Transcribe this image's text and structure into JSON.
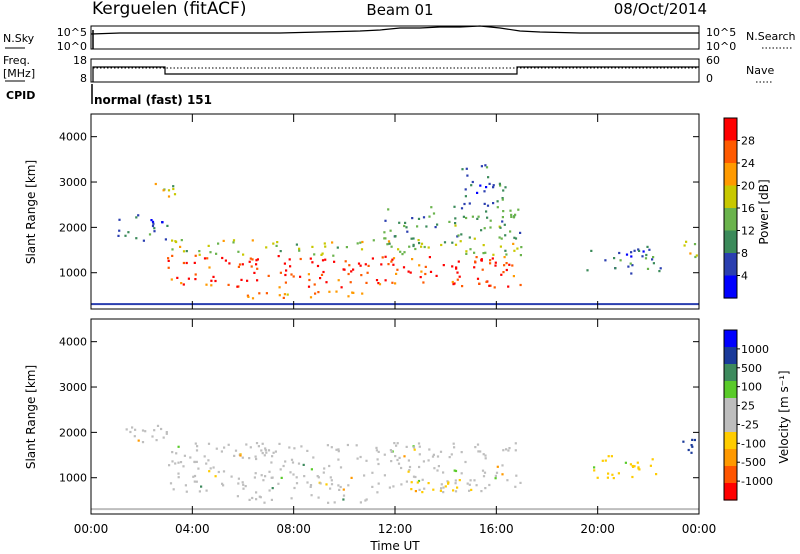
{
  "header": {
    "station": "Kerguelen (fitACF)",
    "beam": "Beam 01",
    "date": "08/Oct/2014"
  },
  "nsky_panel": {
    "left_label": "N.Sky",
    "right_label": "N.Search",
    "left_ticks": [
      "10^5",
      "10^0"
    ],
    "right_ticks": [
      "10^5",
      "10^0"
    ]
  },
  "freq_panel": {
    "left_label_1": "Freq.",
    "left_label_2": "[MHz]",
    "right_label": "Nave",
    "left_ticks": [
      "18",
      "8"
    ],
    "right_ticks": [
      "60",
      "0"
    ]
  },
  "cpid": {
    "label": "CPID",
    "value": "normal (fast) 151"
  },
  "colors": {
    "power_scale": [
      "#0000ff",
      "#2b3fb0",
      "#3b8a5a",
      "#6ab34c",
      "#c8c800",
      "#ff9a00",
      "#ff5a00",
      "#ff0000"
    ],
    "velocity_scale": [
      "#0000ff",
      "#1a3a9a",
      "#3d8a5d",
      "#5acb2a",
      "#bebebe",
      "#bebebe",
      "#ffcc00",
      "#ff9900",
      "#ff5500",
      "#ff0000"
    ]
  },
  "chart_data": [
    {
      "type": "heatmap",
      "name": "power",
      "ylabel": "Slant Range [km]",
      "yticks": [
        "4000",
        "3000",
        "2000",
        "1000"
      ],
      "ylim": [
        200,
        4500
      ],
      "xlim": [
        0,
        24
      ],
      "colorbar": {
        "label": "Power [dB]",
        "ticks": [
          "28",
          "24",
          "20",
          "16",
          "12",
          "8",
          "4"
        ],
        "range": [
          0,
          32
        ]
      },
      "regions": [
        {
          "t0": 3.0,
          "t1": 17.0,
          "r0": 700,
          "r1": 1400,
          "level": 28
        },
        {
          "t0": 5.5,
          "t1": 11.0,
          "r0": 450,
          "r1": 650,
          "level": 24
        },
        {
          "t0": 3.0,
          "t1": 17.0,
          "r0": 1400,
          "r1": 1750,
          "level": 16
        },
        {
          "t0": 11.5,
          "t1": 17.0,
          "r0": 1750,
          "r1": 2500,
          "level": 12
        },
        {
          "t0": 1.0,
          "t1": 3.0,
          "r0": 1700,
          "r1": 2300,
          "level": 8
        },
        {
          "t0": 2.5,
          "t1": 3.5,
          "r0": 2500,
          "r1": 3000,
          "level": 16
        },
        {
          "t0": 14.5,
          "t1": 16.5,
          "r0": 2500,
          "r1": 3400,
          "level": 8
        },
        {
          "t0": 19.5,
          "t1": 22.5,
          "r0": 1000,
          "r1": 1600,
          "level": 8
        },
        {
          "t0": 23.2,
          "t1": 23.9,
          "r0": 1300,
          "r1": 1800,
          "level": 16
        }
      ]
    },
    {
      "type": "heatmap",
      "name": "velocity",
      "ylabel": "Slant Range [km]",
      "xlabel": "Time UT",
      "yticks": [
        "4000",
        "3000",
        "2000",
        "1000"
      ],
      "ylim": [
        200,
        4500
      ],
      "xlim": [
        0,
        24
      ],
      "xticks": [
        "00:00",
        "04:00",
        "08:00",
        "12:00",
        "16:00",
        "20:00",
        "00:00"
      ],
      "colorbar": {
        "label": "Velocity [m s⁻¹]",
        "ticks": [
          "1000",
          "500",
          "100",
          "25",
          "-25",
          "-100",
          "-500",
          "-1000"
        ]
      },
      "regions": [
        {
          "t0": 3.0,
          "t1": 17.0,
          "r0": 700,
          "r1": 1800,
          "level": 0
        },
        {
          "t0": 5.5,
          "t1": 11.0,
          "r0": 450,
          "r1": 650,
          "level": 0
        },
        {
          "t0": 12.5,
          "t1": 15.0,
          "r0": 700,
          "r1": 1000,
          "level": -100
        },
        {
          "t0": 1.0,
          "t1": 3.0,
          "r0": 1800,
          "r1": 2300,
          "level": 0
        },
        {
          "t0": 19.5,
          "t1": 22.5,
          "r0": 1000,
          "r1": 1500,
          "level": -100
        },
        {
          "t0": 23.2,
          "t1": 23.9,
          "r0": 1300,
          "r1": 1900,
          "level": 500
        }
      ]
    }
  ]
}
